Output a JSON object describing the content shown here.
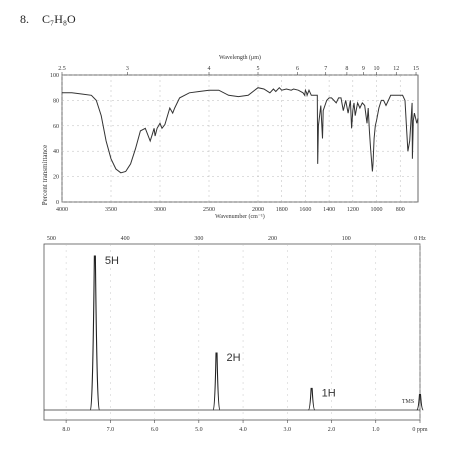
{
  "header": {
    "problem_number": "8.",
    "formula": "C₇H₈O"
  },
  "chart_data": [
    {
      "type": "line",
      "title": "",
      "top_axis_label": "Wavelength (μm)",
      "top_ticks": [
        "2.5",
        "3",
        "4",
        "5",
        "6",
        "7",
        "8",
        "9",
        "10",
        "12",
        "15"
      ],
      "xlabel": "Wavenumber (cm⁻¹)",
      "ylabel": "Percent transmittance",
      "xlim": [
        4000,
        650
      ],
      "ylim": [
        0,
        100
      ],
      "x_ticks": [
        "4000",
        "3500",
        "3000",
        "2500",
        "2000",
        "1800",
        "1600",
        "1400",
        "1200",
        "1000",
        "800"
      ],
      "y_ticks": [
        "0",
        "20",
        "40",
        "60",
        "80",
        "100"
      ],
      "series": [
        {
          "x": [
            4000,
            3900,
            3800,
            3700,
            3650,
            3600,
            3550,
            3500,
            3450,
            3400,
            3350,
            3300,
            3250,
            3200,
            3150,
            3100,
            3080,
            3060,
            3050,
            3030,
            3000,
            2980,
            2950,
            2900,
            2870,
            2850,
            2800,
            2700,
            2600,
            2500,
            2400,
            2300,
            2200,
            2100,
            2000,
            1950,
            1900,
            1870,
            1850,
            1820,
            1800,
            1760,
            1720,
            1700,
            1660,
            1620,
            1606,
            1600,
            1590,
            1586,
            1570,
            1550,
            1500,
            1496,
            1490,
            1470,
            1456,
            1450,
            1420,
            1400,
            1390,
            1380,
            1360,
            1340,
            1320,
            1300,
            1280,
            1260,
            1240,
            1220,
            1210,
            1200,
            1190,
            1180,
            1160,
            1140,
            1120,
            1100,
            1080,
            1070,
            1060,
            1050,
            1035,
            1030,
            1020,
            1010,
            1000,
            980,
            960,
            940,
            920,
            900,
            880,
            860,
            840,
            820,
            800,
            780,
            760,
            745,
            735,
            720,
            700,
            697,
            690,
            680,
            660,
            650
          ],
          "y": [
            86,
            86,
            85,
            84,
            80,
            68,
            48,
            34,
            26,
            23,
            24,
            30,
            42,
            56,
            58,
            48,
            53,
            58,
            52,
            58,
            62,
            58,
            61,
            74,
            70,
            74,
            82,
            86,
            87,
            88,
            88,
            84,
            83,
            84,
            90,
            89,
            86,
            89,
            87,
            90,
            88,
            89,
            88,
            89,
            88,
            86,
            84,
            88,
            86,
            84,
            88,
            84,
            84,
            30,
            60,
            76,
            50,
            72,
            80,
            82,
            82,
            82,
            80,
            78,
            82,
            82,
            72,
            80,
            70,
            80,
            58,
            72,
            78,
            68,
            78,
            74,
            78,
            76,
            62,
            74,
            56,
            42,
            24,
            30,
            50,
            60,
            64,
            74,
            80,
            80,
            76,
            80,
            84,
            84,
            84,
            84,
            84,
            84,
            80,
            56,
            40,
            48,
            78,
            34,
            64,
            70,
            62,
            66
          ]
        }
      ]
    },
    {
      "type": "line",
      "title": "",
      "top_axis_label": "Hz",
      "top_ticks": [
        "500",
        "400",
        "300",
        "200",
        "100",
        "0 Hz"
      ],
      "xlabel": "ppm",
      "ylabel": "",
      "xlim": [
        8.5,
        0
      ],
      "x_ticks": [
        "8.0",
        "7.0",
        "6.0",
        "5.0",
        "4.0",
        "3.0",
        "2.0",
        "1.0",
        "0 ppm"
      ],
      "tms_label": "TMS",
      "peaks": [
        {
          "ppm": 7.35,
          "height": 1.0,
          "label": "5H"
        },
        {
          "ppm": 4.6,
          "height": 0.37,
          "label": "2H"
        },
        {
          "ppm": 2.45,
          "height": 0.14,
          "label": "1H"
        },
        {
          "ppm": 0.0,
          "height": 0.1,
          "label": ""
        }
      ]
    }
  ]
}
